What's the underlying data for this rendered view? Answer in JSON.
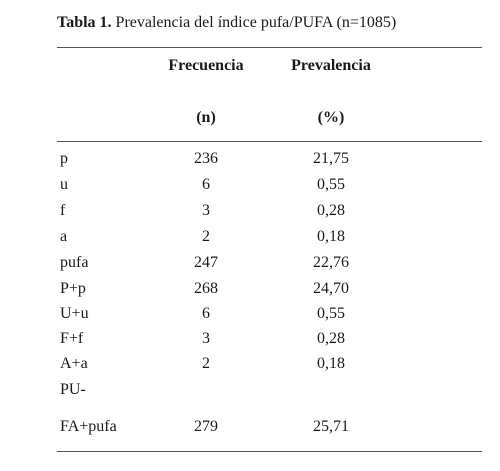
{
  "caption": {
    "label": "Tabla 1.",
    "text": " Prevalencia del índice pufa/PUFA (n=1085)"
  },
  "headers": {
    "col2_line1": "Frecuencia",
    "col2_line2": "(n)",
    "col3_line1": "Prevalencia",
    "col3_line2": "(%)"
  },
  "rows": [
    {
      "label": "p",
      "n": "236",
      "pct": "21,75"
    },
    {
      "label": "u",
      "n": "6",
      "pct": "0,55"
    },
    {
      "label": "f",
      "n": "3",
      "pct": "0,28"
    },
    {
      "label": "a",
      "n": "2",
      "pct": "0,18"
    },
    {
      "label": "pufa",
      "n": "247",
      "pct": "22,76"
    },
    {
      "label": "P+p",
      "n": "268",
      "pct": "24,70"
    },
    {
      "label": "U+u",
      "n": "6",
      "pct": "0,55"
    },
    {
      "label": "F+f",
      "n": "3",
      "pct": "0,28"
    },
    {
      "label": "A+a",
      "n": "2",
      "pct": "0,18"
    },
    {
      "label": "PU-",
      "n": "",
      "pct": ""
    },
    {
      "label": "FA+pufa",
      "n": "279",
      "pct": "25,71"
    }
  ]
}
